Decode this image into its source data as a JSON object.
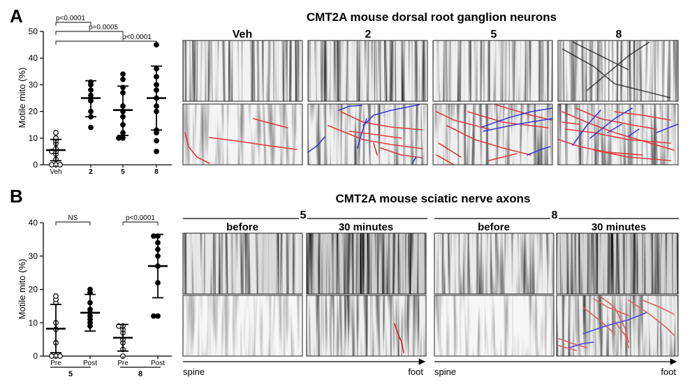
{
  "panel_a": {
    "letter": "A",
    "title": "CMT2A mouse dorsal root ganglion neurons",
    "kymo_columns": [
      "Veh",
      "2",
      "5",
      "8"
    ]
  },
  "panel_b": {
    "letter": "B",
    "title": "CMT2A mouse sciatic nerve axons",
    "group_labels": [
      "5",
      "8"
    ],
    "kymo_columns": [
      "before",
      "30 minutes",
      "before",
      "30 minutes"
    ],
    "direction_left": [
      "spine",
      "spine"
    ],
    "direction_right": [
      "foot",
      "foot"
    ]
  },
  "colors": {
    "anterograde": "#e03a3a",
    "retrograde": "#3a3ad8",
    "marker": "#000000"
  },
  "chart_data": [
    {
      "type": "scatter",
      "panel": "A",
      "ylabel": "Motile mito (%)",
      "ylim": [
        0,
        50
      ],
      "yticks": [
        0,
        10,
        20,
        30,
        40,
        50
      ],
      "categories": [
        "Veh",
        "2",
        "5",
        "8"
      ],
      "series": [
        {
          "name": "Veh",
          "marker": "open",
          "values": [
            0,
            0,
            0,
            2,
            4,
            5,
            5,
            6,
            8,
            9,
            10,
            12
          ],
          "mean": 5.5,
          "sd_low": 1.5,
          "sd_high": 9.5
        },
        {
          "name": "2",
          "marker": "filled",
          "values": [
            14,
            18,
            20,
            24,
            25,
            26,
            28,
            30,
            31
          ],
          "mean": 25,
          "sd_low": 18,
          "sd_high": 31.5
        },
        {
          "name": "5",
          "marker": "filled",
          "values": [
            10,
            10,
            12,
            15,
            18,
            20,
            22,
            27,
            29,
            32,
            34
          ],
          "mean": 20.5,
          "sd_low": 11,
          "sd_high": 29.5
        },
        {
          "name": "8",
          "marker": "filled",
          "values": [
            5,
            9,
            12,
            13,
            20,
            22,
            25,
            28,
            30,
            33,
            36,
            45
          ],
          "mean": 25,
          "sd_low": 13,
          "sd_high": 37
        }
      ],
      "comparisons": [
        {
          "from": "Veh",
          "to": "2",
          "label": "p<0.0001"
        },
        {
          "from": "Veh",
          "to": "5",
          "label": "p=0.0005"
        },
        {
          "from": "Veh",
          "to": "8",
          "label": "p<0.0001"
        }
      ]
    },
    {
      "type": "scatter",
      "panel": "B",
      "ylabel": "Motile mito (%)",
      "ylim": [
        0,
        40
      ],
      "yticks": [
        0,
        10,
        20,
        30,
        40
      ],
      "categories": [
        "Pre",
        "Post",
        "Pre",
        "Post"
      ],
      "group_labels": [
        "5",
        "8"
      ],
      "series": [
        {
          "name": "Pre",
          "group": "5",
          "marker": "open",
          "values": [
            0,
            0,
            0,
            4,
            8,
            10,
            16,
            17,
            18
          ],
          "mean": 8.2,
          "sd_low": 1,
          "sd_high": 15.5
        },
        {
          "name": "Post",
          "group": "5",
          "marker": "filled",
          "values": [
            9,
            10,
            11,
            12,
            13,
            14,
            16,
            19,
            20
          ],
          "mean": 13,
          "sd_low": 7.5,
          "sd_high": 18.5
        },
        {
          "name": "Pre",
          "group": "8",
          "marker": "open",
          "values": [
            0,
            2,
            4,
            5,
            7,
            8,
            9,
            9
          ],
          "mean": 5.5,
          "sd_low": 1.5,
          "sd_high": 9.5
        },
        {
          "name": "Post",
          "group": "8",
          "marker": "filled",
          "values": [
            12,
            12,
            22,
            27,
            30,
            32,
            34,
            36,
            36
          ],
          "mean": 27,
          "sd_low": 17.5,
          "sd_high": 36.5
        }
      ],
      "comparisons": [
        {
          "from": 0,
          "to": 1,
          "label": "NS"
        },
        {
          "from": 2,
          "to": 3,
          "label": "p<0.0001"
        }
      ]
    }
  ]
}
